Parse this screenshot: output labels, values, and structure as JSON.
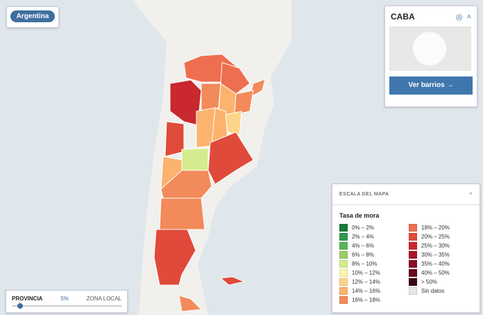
{
  "header": {
    "country_button": "Argentina"
  },
  "region_panel": {
    "title": "CABA",
    "action": "Ver barrios"
  },
  "legend": {
    "title": "ESCALA DEL MAPA",
    "subtitle": "Tasa de mora",
    "items": [
      {
        "label": "0% – 2%",
        "color": "#1a7a3a"
      },
      {
        "label": "2% – 4%",
        "color": "#2e9a4e"
      },
      {
        "label": "4% – 6%",
        "color": "#5bb35a"
      },
      {
        "label": "6% – 8%",
        "color": "#9ccc65"
      },
      {
        "label": "8% – 10%",
        "color": "#d4ec8e"
      },
      {
        "label": "10% – 12%",
        "color": "#fdf5b0"
      },
      {
        "label": "12% – 14%",
        "color": "#fdd58a"
      },
      {
        "label": "14% – 16%",
        "color": "#fbb36e"
      },
      {
        "label": "16% – 18%",
        "color": "#f28a5a"
      },
      {
        "label": "18% – 20%",
        "color": "#ee6f4f"
      },
      {
        "label": "20% – 25%",
        "color": "#e04a3a"
      },
      {
        "label": "25% – 30%",
        "color": "#c8282e"
      },
      {
        "label": "30% – 35%",
        "color": "#a8142a"
      },
      {
        "label": "35% – 40%",
        "color": "#8a0d25"
      },
      {
        "label": "40% – 50%",
        "color": "#6a0a1e"
      },
      {
        "label": "> 50%",
        "color": "#3a0512"
      },
      {
        "label": "Sin datos",
        "color": "#e6e6e6"
      }
    ]
  },
  "slider": {
    "left": "PROVINCIA",
    "value": "5%",
    "right": "ZONA LOCAL"
  }
}
